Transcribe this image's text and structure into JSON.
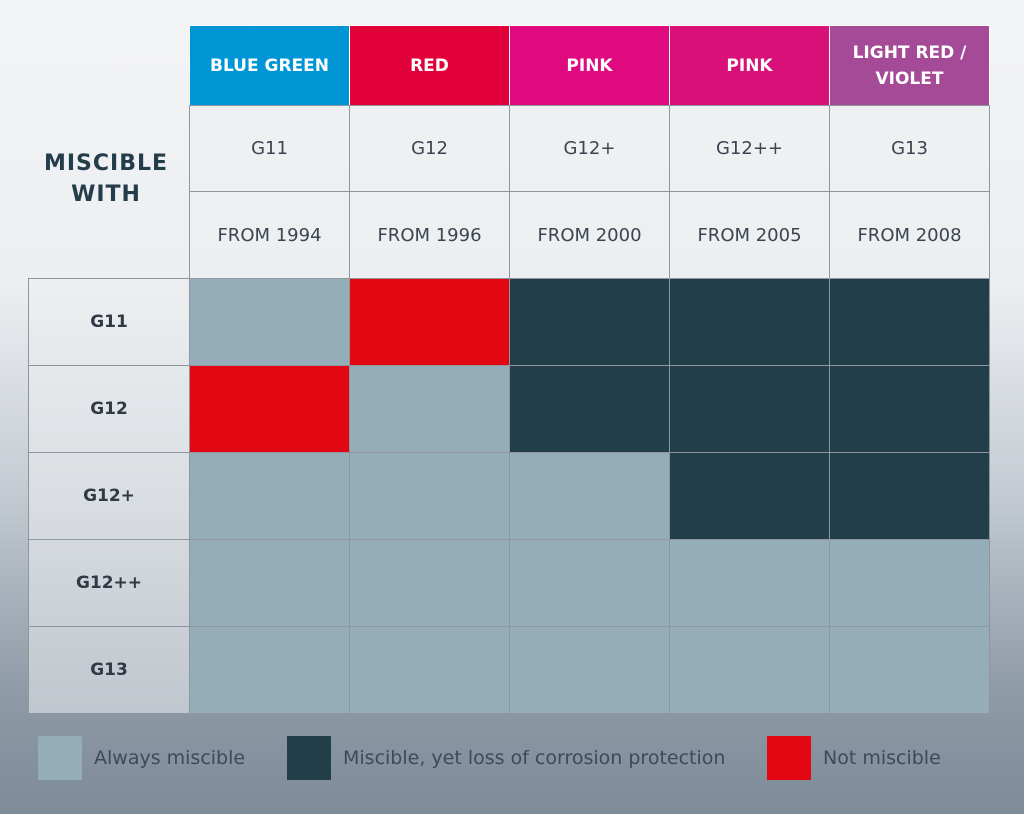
{
  "chart_data": {
    "type": "table",
    "title": "MISCIBLE WITH",
    "columns": [
      {
        "color_name": "BLUE GREEN",
        "code": "G11",
        "year": "FROM 1994",
        "bg": "#0096d6"
      },
      {
        "color_name": "RED",
        "code": "G12",
        "year": "FROM 1996",
        "bg": "#e2003a"
      },
      {
        "color_name": "PINK",
        "code": "G12+",
        "year": "FROM 2000",
        "bg": "#df0a7f"
      },
      {
        "color_name": "PINK",
        "code": "G12++",
        "year": "FROM 2005",
        "bg": "#d91078"
      },
      {
        "color_name": "LIGHT RED / VIOLET",
        "code": "G13",
        "year": "FROM 2008",
        "bg": "#a44a97"
      }
    ],
    "rows": [
      "G11",
      "G12",
      "G12+",
      "G12++",
      "G13"
    ],
    "matrix": [
      [
        "always",
        "not",
        "loss",
        "loss",
        "loss"
      ],
      [
        "not",
        "always",
        "loss",
        "loss",
        "loss"
      ],
      [
        "always",
        "always",
        "always",
        "loss",
        "loss"
      ],
      [
        "always",
        "always",
        "always",
        "always",
        "always"
      ],
      [
        "always",
        "always",
        "always",
        "always",
        "always"
      ]
    ],
    "legend": [
      {
        "key": "always",
        "label": "Always miscible",
        "color": "#95adb8"
      },
      {
        "key": "loss",
        "label": "Miscible, yet loss of corrosion protection",
        "color": "#233e4b"
      },
      {
        "key": "not",
        "label": "Not miscible",
        "color": "#e30613"
      }
    ]
  }
}
